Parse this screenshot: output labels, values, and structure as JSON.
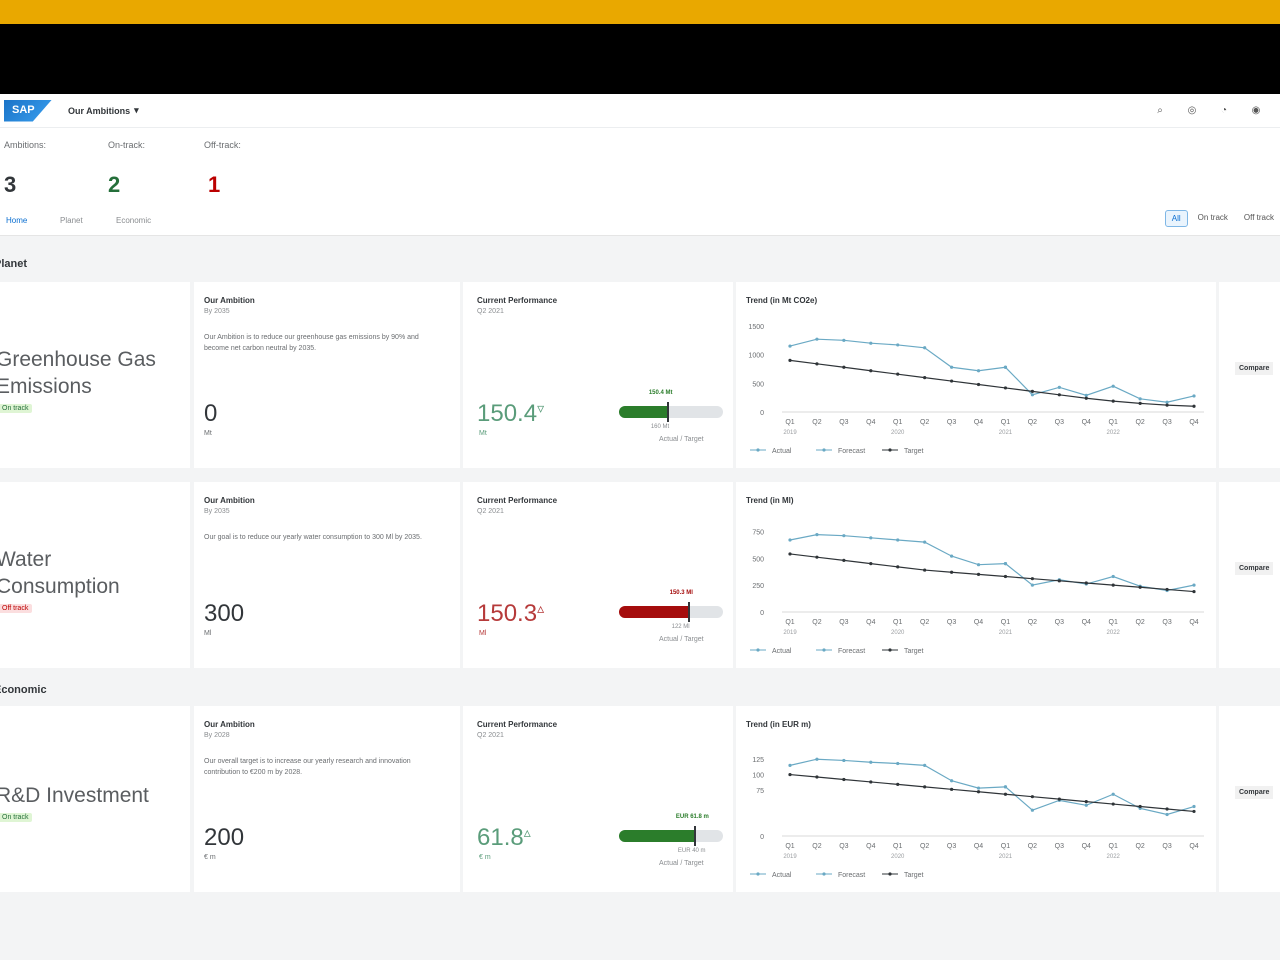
{
  "shell": {
    "logo": "SAP",
    "app_title": "Our Ambitions",
    "icons": [
      "search-icon",
      "settings-icon",
      "bell-icon",
      "user-icon"
    ]
  },
  "header": {
    "kpis": [
      {
        "label": "Ambitions:",
        "value": "3",
        "color": "#32363a"
      },
      {
        "label": "On-track:",
        "value": "2",
        "color": "#256f3a"
      },
      {
        "label": "Off-track:",
        "value": "1",
        "color": "#bb0000"
      }
    ],
    "tabs": [
      "Home",
      "Planet",
      "Economic"
    ],
    "filters": [
      "All",
      "On track",
      "Off track"
    ]
  },
  "sections": {
    "planet": "Planet",
    "economic": "Economic"
  },
  "ambitions": [
    {
      "name_lines": [
        "Greenhouse Gas",
        "Emissions"
      ],
      "status": "On track",
      "status_type": "ok",
      "ambition_title": "Our Ambition",
      "ambition_sub": "By 2035",
      "ambition_text": "Our Ambition is to reduce our greenhouse gas emissions by 90% and become net carbon neutral by 2035.",
      "ambition_value": "0",
      "ambition_unit": "Mt",
      "perf_title": "Current Performance",
      "perf_sub": "Q2 2021",
      "perf_value": "150.4",
      "perf_arrow": "▿",
      "perf_unit": "Mt",
      "perf_color": "#5a9c7a",
      "bar_color": "#2b7d2b",
      "actual_fraction": 0.46,
      "target_fraction": 0.46,
      "actual_label": "150.4 Mt",
      "target_label": "160 Mt",
      "bar_legend": "Actual / Target",
      "compare": "Compare",
      "chart_data": {
        "type": "line",
        "title": "Trend (in Mt CO2e)",
        "x": [
          "Q1",
          "Q2",
          "Q3",
          "Q4",
          "Q1",
          "Q2",
          "Q3",
          "Q4",
          "Q1",
          "Q2",
          "Q3",
          "Q4",
          "Q1",
          "Q2",
          "Q3",
          "Q4"
        ],
        "year_labels": [
          "2019",
          "2020",
          "2021",
          "2022"
        ],
        "yticks": [
          1500,
          1000,
          500,
          0
        ],
        "ylim": [
          0,
          1500
        ],
        "series": [
          {
            "name": "Actual",
            "color": "#6aa9c4",
            "values": [
              1150,
              1270,
              1250,
              1200,
              1170,
              1120,
              780,
              720,
              780,
              null,
              null,
              null,
              null,
              null,
              null,
              null
            ]
          },
          {
            "name": "Forecast",
            "color": "#6aa9c4",
            "values": [
              null,
              null,
              null,
              null,
              null,
              null,
              null,
              null,
              780,
              300,
              430,
              290,
              450,
              230,
              170,
              280
            ]
          },
          {
            "name": "Target",
            "color": "#2f3438",
            "values": [
              900,
              840,
              780,
              720,
              660,
              600,
              540,
              480,
              420,
              360,
              300,
              240,
              190,
              150,
              120,
              100
            ]
          }
        ]
      }
    },
    {
      "name_lines": [
        "Water",
        "Consumption"
      ],
      "status": "Off track",
      "status_type": "off",
      "ambition_title": "Our Ambition",
      "ambition_sub": "By 2035",
      "ambition_text": "Our goal is to reduce our yearly water consumption to 300 Ml by 2035.",
      "ambition_value": "300",
      "ambition_unit": "Ml",
      "perf_title": "Current Performance",
      "perf_sub": "Q2 2021",
      "perf_value": "150.3",
      "perf_arrow": "▵",
      "perf_unit": "Ml",
      "perf_color": "#b63a3a",
      "bar_color": "#a50d0d",
      "actual_fraction": 0.66,
      "target_fraction": 0.66,
      "actual_label": "150.3 Ml",
      "target_label": "122 Ml",
      "bar_legend": "Actual / Target",
      "compare": "Compare",
      "chart_data": {
        "type": "line",
        "title": "Trend (in Ml)",
        "x": [
          "Q1",
          "Q2",
          "Q3",
          "Q4",
          "Q1",
          "Q2",
          "Q3",
          "Q4",
          "Q1",
          "Q2",
          "Q3",
          "Q4",
          "Q1",
          "Q2",
          "Q3",
          "Q4"
        ],
        "year_labels": [
          "2019",
          "2020",
          "2021",
          "2022"
        ],
        "yticks": [
          750,
          500,
          250,
          0
        ],
        "ylim": [
          0,
          800
        ],
        "series": [
          {
            "name": "Actual",
            "color": "#6aa9c4",
            "values": [
              670,
              720,
              710,
              690,
              670,
              650,
              520,
              440,
              450,
              null,
              null,
              null,
              null,
              null,
              null,
              null
            ]
          },
          {
            "name": "Forecast",
            "color": "#6aa9c4",
            "values": [
              null,
              null,
              null,
              null,
              null,
              null,
              null,
              null,
              450,
              250,
              300,
              260,
              330,
              240,
              200,
              250
            ]
          },
          {
            "name": "Target",
            "color": "#2f3438",
            "values": [
              540,
              510,
              480,
              450,
              420,
              390,
              370,
              350,
              330,
              310,
              290,
              270,
              250,
              230,
              210,
              190
            ]
          }
        ]
      }
    },
    {
      "name_lines": [
        "R&D Investment"
      ],
      "status": "On track",
      "status_type": "ok",
      "ambition_title": "Our Ambition",
      "ambition_sub": "By 2028",
      "ambition_text": "Our overall target is to increase our yearly research and innovation contribution to €200 m by 2028.",
      "ambition_value": "200",
      "ambition_unit": "€ m",
      "perf_title": "Current Performance",
      "perf_sub": "Q2 2021",
      "perf_value": "61.8",
      "perf_arrow": "▵",
      "perf_unit": "€ m",
      "perf_color": "#5a9c7a",
      "bar_color": "#2b7d2b",
      "actual_fraction": 0.72,
      "target_fraction": 0.72,
      "actual_label": "EUR 61.8 m",
      "target_label": "EUR 40 m",
      "bar_legend": "Actual / Target",
      "compare": "Compare",
      "chart_data": {
        "type": "line",
        "title": "Trend (in EUR m)",
        "x": [
          "Q1",
          "Q2",
          "Q3",
          "Q4",
          "Q1",
          "Q2",
          "Q3",
          "Q4",
          "Q1",
          "Q2",
          "Q3",
          "Q4",
          "Q1",
          "Q2",
          "Q3",
          "Q4"
        ],
        "year_labels": [
          "2019",
          "2020",
          "2021",
          "2022"
        ],
        "yticks": [
          125,
          100,
          75,
          0
        ],
        "ylim": [
          0,
          140
        ],
        "series": [
          {
            "name": "Actual",
            "color": "#6aa9c4",
            "values": [
              115,
              125,
              123,
              120,
              118,
              115,
              90,
              78,
              80,
              null,
              null,
              null,
              null,
              null,
              null,
              null
            ]
          },
          {
            "name": "Forecast",
            "color": "#6aa9c4",
            "values": [
              null,
              null,
              null,
              null,
              null,
              null,
              null,
              null,
              80,
              42,
              58,
              50,
              68,
              45,
              35,
              48
            ]
          },
          {
            "name": "Target",
            "color": "#2f3438",
            "values": [
              100,
              96,
              92,
              88,
              84,
              80,
              76,
              72,
              68,
              64,
              60,
              56,
              52,
              48,
              44,
              40
            ]
          }
        ]
      }
    }
  ]
}
